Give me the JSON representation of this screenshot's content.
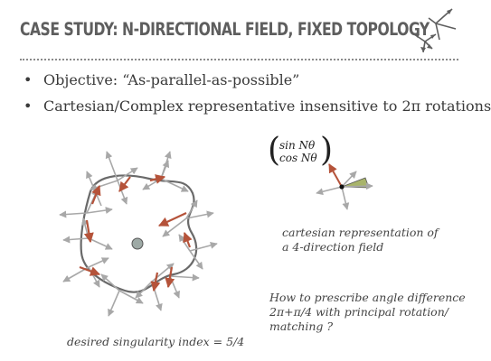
{
  "slide": {
    "title": "CASE STUDY: N-DIRECTIONAL FIELD, FIXED TOPOLOGY",
    "bullets": [
      "Objective: “As-parallel-as-possible”",
      "Cartesian/Complex representative insensitive to 2π rotations"
    ],
    "formula": {
      "top": "sin Nθ",
      "bottom": "cos Nθ"
    },
    "caption_cartesian": [
      "cartesian representation of",
      "a 4-direction field"
    ],
    "caption_question": [
      "How to prescribe angle difference",
      "2π+π/4 with principal rotation/",
      "matching ?"
    ],
    "caption_singularity": "desired singularity index = 5/4"
  },
  "colors": {
    "title": "#5e5e5e",
    "grey_arrow": "#a8a8a8",
    "red_arrow": "#b5533a",
    "curve": "#6a6a6a",
    "sector": "#a8b46a",
    "singularity": "#9eaaa6"
  }
}
